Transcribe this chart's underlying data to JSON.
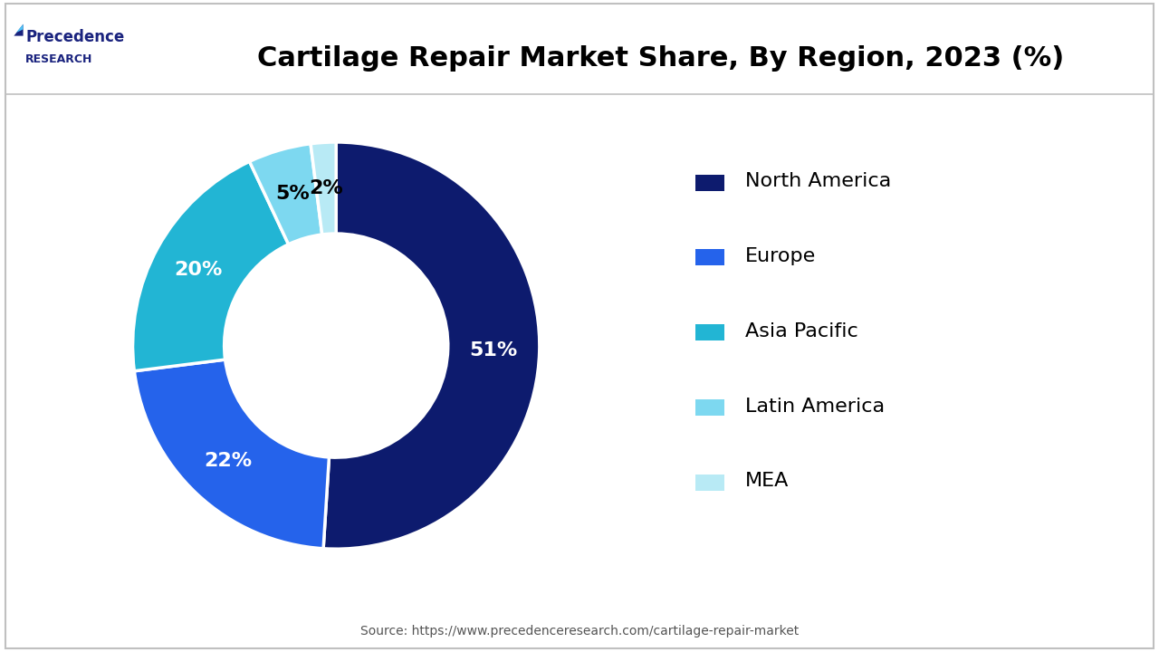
{
  "title": "Cartilage Repair Market Share, By Region, 2023 (%)",
  "values": [
    51,
    22,
    20,
    5,
    2
  ],
  "labels": [
    "North America",
    "Europe",
    "Asia Pacific",
    "Latin America",
    "MEA"
  ],
  "colors": [
    "#0d1b6e",
    "#2563eb",
    "#22b5d4",
    "#7dd8f0",
    "#b8eaf5"
  ],
  "pct_labels": [
    "51%",
    "22%",
    "20%",
    "5%",
    "2%"
  ],
  "pct_label_colors": [
    "white",
    "white",
    "white",
    "black",
    "black"
  ],
  "donut_hole": 0.55,
  "start_angle": 90,
  "source_text": "Source: https://www.precedenceresearch.com/cartilage-repair-market",
  "background_color": "#ffffff",
  "border_color": "#cccccc",
  "title_fontsize": 22,
  "legend_fontsize": 16,
  "pct_fontsize": 16
}
